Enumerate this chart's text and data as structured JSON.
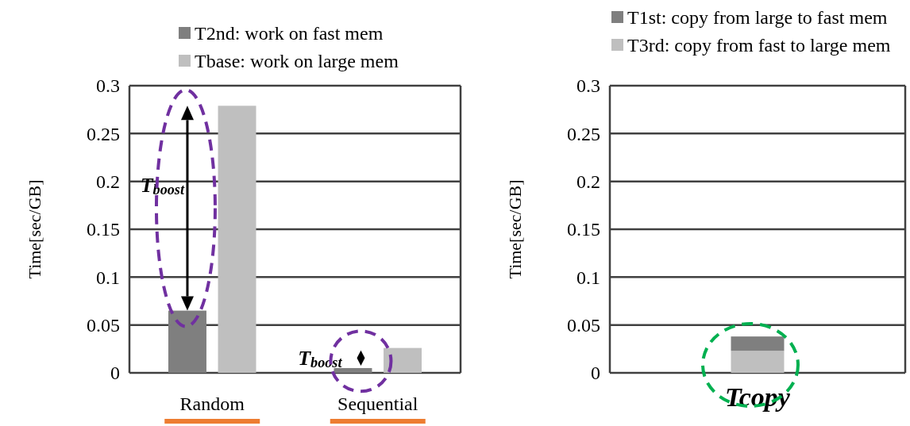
{
  "chart_data": [
    {
      "type": "bar",
      "categories": [
        "Random",
        "Sequential"
      ],
      "ylabel": "Time[sec/GB]",
      "series": [
        {
          "name": "T2nd: work on fast mem",
          "color": "#7f7f7f",
          "values": [
            0.065,
            0.005
          ]
        },
        {
          "name": "Tbase: work on large mem",
          "color": "#bfbfbf",
          "values": [
            0.279,
            0.026
          ]
        }
      ],
      "ylim": [
        0,
        0.3
      ],
      "yticks": [
        0,
        0.05,
        0.1,
        0.15,
        0.2,
        0.25,
        0.3
      ],
      "grid": "y",
      "legend": "top",
      "annotations": [
        "T$_{boost}$",
        "T$_{boost}$"
      ]
    },
    {
      "type": "bar",
      "categories": [
        "Tcopy"
      ],
      "ylabel": "Time[sec/GB]",
      "stacked": true,
      "series": [
        {
          "name": "T3rd: copy from fast to large mem",
          "color": "#bfbfbf",
          "values": [
            0.023
          ]
        },
        {
          "name": "T1st: copy from large to fast mem",
          "color": "#7f7f7f",
          "values": [
            0.015
          ]
        }
      ],
      "ylim": [
        0,
        0.3
      ],
      "yticks": [
        0,
        0.05,
        0.1,
        0.15,
        0.2,
        0.25,
        0.3
      ],
      "grid": "y",
      "legend": "top"
    }
  ]
}
